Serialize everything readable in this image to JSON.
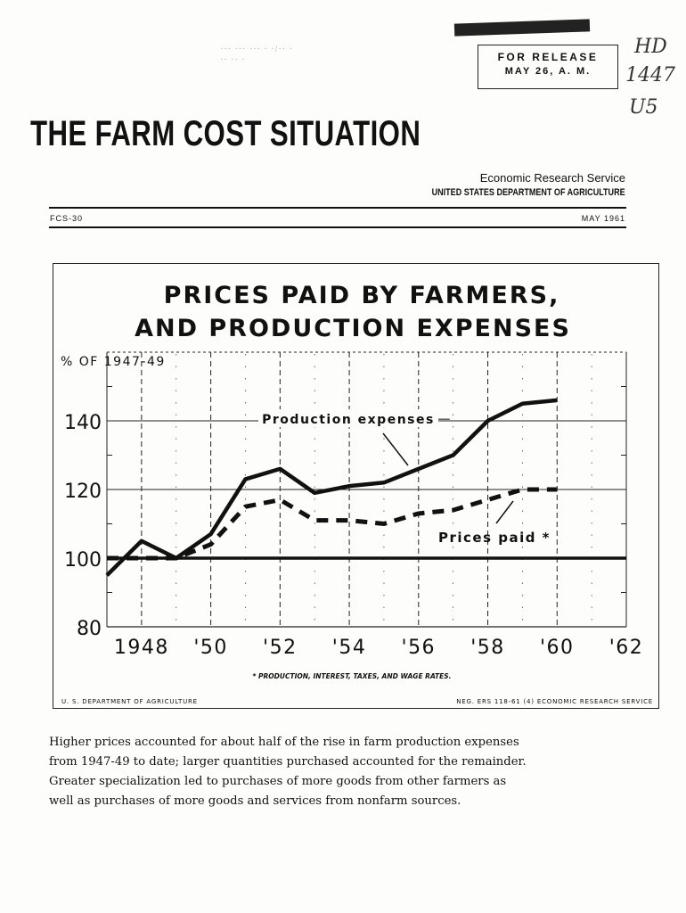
{
  "header": {
    "stamp_line1": "··· ··· ··· ·   ·/·· ·",
    "stamp_line2": "·· ·· ·",
    "release_line1": "FOR RELEASE",
    "release_line2": "MAY 26, A. M.",
    "handwritten": [
      "HD",
      "1447",
      "U5"
    ],
    "title": "THE FARM COST SITUATION",
    "agency_line1": "Economic Research Service",
    "agency_line2": "UNITED STATES DEPARTMENT OF AGRICULTURE",
    "issue": "FCS-30",
    "issue_date": "MAY 1961"
  },
  "chart_frame": {
    "footer_left": "U. S. DEPARTMENT OF AGRICULTURE",
    "footer_right": "NEG. ERS 118-61 (4)    ECONOMIC RESEARCH SERVICE"
  },
  "chart_data": {
    "type": "line",
    "title_line1": "PRICES PAID BY FARMERS,",
    "title_line2": "AND PRODUCTION EXPENSES",
    "ylabel": "% OF 1947-49",
    "xlim": [
      1947,
      1962
    ],
    "ylim": [
      80,
      160
    ],
    "yticks": [
      80,
      100,
      120,
      140
    ],
    "ytick_labels": [
      "80",
      "100",
      "120",
      "140"
    ],
    "xticks": [
      1948,
      1950,
      1952,
      1954,
      1956,
      1958,
      1960,
      1962
    ],
    "xtick_labels": [
      "1948",
      "'50",
      "'52",
      "'54",
      "'56",
      "'58",
      "'60",
      "'62"
    ],
    "reference_line": 100,
    "series": [
      {
        "name": "Production expenses",
        "style": "solid",
        "x": [
          1947,
          1948,
          1949,
          1950,
          1951,
          1952,
          1953,
          1954,
          1955,
          1956,
          1957,
          1958,
          1959,
          1960
        ],
        "y": [
          95,
          105,
          100,
          107,
          123,
          126,
          119,
          121,
          122,
          126,
          130,
          140,
          145,
          146
        ]
      },
      {
        "name": "Prices paid *",
        "style": "dashed",
        "x": [
          1947,
          1948,
          1949,
          1950,
          1951,
          1952,
          1953,
          1954,
          1955,
          1956,
          1957,
          1958,
          1959,
          1960
        ],
        "y": [
          100,
          100,
          100,
          104,
          115,
          117,
          111,
          111,
          110,
          113,
          114,
          117,
          120,
          120
        ]
      }
    ],
    "footnote": "* PRODUCTION, INTEREST, TAXES, AND WAGE RATES.",
    "grid": true
  },
  "caption_lines": [
    "Higher prices accounted for about half of the rise in farm production expenses",
    "from 1947-49 to date; larger quantities purchased accounted for the remainder.",
    "Greater specialization led to purchases of more goods from other farmers as",
    "well as purchases of more goods and services from nonfarm sources."
  ]
}
